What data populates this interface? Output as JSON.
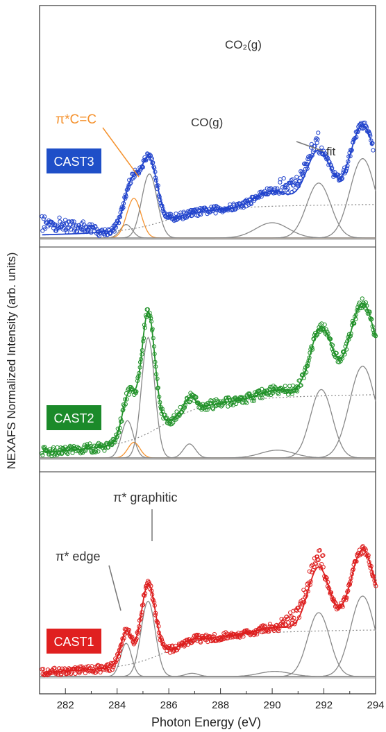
{
  "chart_data": {
    "type": "scatter",
    "xlabel": "Photon Energy (eV)",
    "ylabel": "NEXAFS Normalized Intensity (arb. units)",
    "xlim": [
      281,
      294
    ],
    "x_ticks": [
      282,
      284,
      286,
      288,
      290,
      292,
      294
    ],
    "grid": false,
    "annotations": [
      "CO₂(g)",
      "CO(g)",
      "π*C=C",
      "fit",
      "π* graphitic",
      "π* edge"
    ],
    "panels": [
      {
        "label": "CAST3",
        "label_color": "#1f4fc8",
        "data_color": "#2244cc",
        "fit_color": "#2244cc",
        "edge": {
          "x0": 285.9,
          "w": 1.4,
          "h": 0.58
        },
        "peaks": [
          {
            "center": 284.35,
            "width": 0.55,
            "height": 0.22,
            "color": "#888888"
          },
          {
            "center": 284.65,
            "width": 0.65,
            "height": 0.65,
            "color": "#f5922e"
          },
          {
            "center": 285.25,
            "width": 0.7,
            "height": 1.05,
            "color": "#888888"
          },
          {
            "center": 290.0,
            "width": 1.5,
            "height": 0.25,
            "color": "#888888"
          },
          {
            "center": 291.8,
            "width": 1.1,
            "height": 0.9,
            "color": "#888888"
          },
          {
            "center": 293.5,
            "width": 1.15,
            "height": 1.3,
            "color": "#888888"
          }
        ]
      },
      {
        "label": "CAST2",
        "label_color": "#1b8a2a",
        "data_color": "#22922a",
        "fit_color": "#22922a",
        "edge": {
          "x0": 285.8,
          "w": 1.4,
          "h": 0.86
        },
        "peaks": [
          {
            "center": 284.4,
            "width": 0.55,
            "height": 0.48,
            "color": "#888888"
          },
          {
            "center": 284.65,
            "width": 0.55,
            "height": 0.2,
            "color": "#f5922e"
          },
          {
            "center": 285.2,
            "width": 0.6,
            "height": 1.55,
            "color": "#888888"
          },
          {
            "center": 286.8,
            "width": 0.55,
            "height": 0.18,
            "color": "#888888"
          },
          {
            "center": 290.2,
            "width": 1.5,
            "height": 0.1,
            "color": "#888888"
          },
          {
            "center": 291.9,
            "width": 1.0,
            "height": 0.88,
            "color": "#888888"
          },
          {
            "center": 293.5,
            "width": 1.2,
            "height": 1.18,
            "color": "#888888"
          }
        ]
      },
      {
        "label": "CAST1",
        "label_color": "#e02020",
        "data_color": "#dd1e1e",
        "fit_color": "#dd1e1e",
        "edge": {
          "x0": 285.9,
          "w": 1.4,
          "h": 0.77
        },
        "peaks": [
          {
            "center": 284.35,
            "width": 0.5,
            "height": 0.52,
            "color": "#888888"
          },
          {
            "center": 285.2,
            "width": 0.65,
            "height": 1.18,
            "color": "#888888"
          },
          {
            "center": 286.9,
            "width": 0.6,
            "height": 0.05,
            "color": "#888888"
          },
          {
            "center": 290.1,
            "width": 1.4,
            "height": 0.08,
            "color": "#888888"
          },
          {
            "center": 291.8,
            "width": 1.0,
            "height": 1.0,
            "color": "#888888"
          },
          {
            "center": 293.5,
            "width": 1.1,
            "height": 1.26,
            "color": "#888888"
          }
        ]
      }
    ]
  }
}
